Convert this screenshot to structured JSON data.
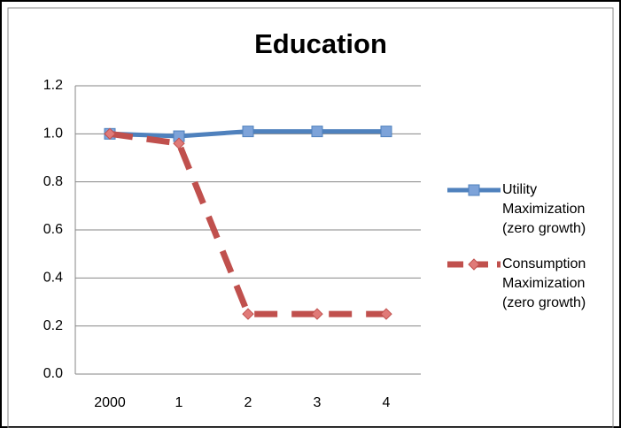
{
  "chart_data": {
    "type": "line",
    "title": "Education",
    "categories": [
      "2000",
      "1",
      "2",
      "3",
      "4"
    ],
    "series": [
      {
        "name": "Utility Maximization (zero growth)",
        "color": "#4f81bd",
        "values": [
          1.0,
          0.99,
          1.01,
          1.01,
          1.01
        ]
      },
      {
        "name": "Consumption Maximization (zero growth)",
        "color": "#c0504d",
        "values": [
          1.0,
          0.96,
          0.25,
          0.25,
          0.25
        ]
      }
    ],
    "ylim": [
      0,
      1.2
    ],
    "yticks": [
      {
        "value": 0,
        "label": "0.0"
      },
      0.2,
      0.4,
      0.6,
      0.8,
      {
        "value": 1,
        "label": "1.0"
      },
      1.2
    ],
    "grid": true
  }
}
